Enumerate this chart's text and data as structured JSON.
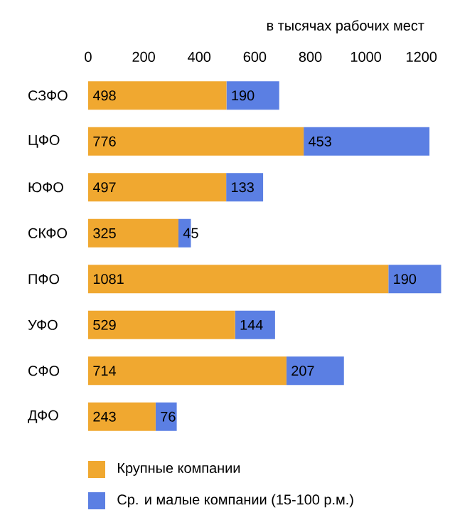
{
  "chart_data": {
    "type": "bar",
    "orientation": "horizontal",
    "stacked": true,
    "xlabel": "в тысячах рабочих мест",
    "categories": [
      "СЗФО",
      "ЦФО",
      "ЮФО",
      "СКФО",
      "ПФО",
      "УФО",
      "СФО",
      "ДФО"
    ],
    "series": [
      {
        "name": "Крупные компании",
        "color": "#f0a830",
        "values": [
          498,
          776,
          497,
          325,
          1081,
          529,
          714,
          243
        ]
      },
      {
        "name": "Ср. и малые компании (15-100 р.м.)",
        "color": "#5b7fe3",
        "values": [
          190,
          453,
          133,
          45,
          190,
          144,
          207,
          76
        ]
      }
    ],
    "xlim": [
      0,
      1280
    ],
    "xticks": [
      0,
      200,
      400,
      600,
      800,
      1000,
      1200
    ],
    "data_labels": true,
    "legend": "bottom",
    "grid": false
  }
}
